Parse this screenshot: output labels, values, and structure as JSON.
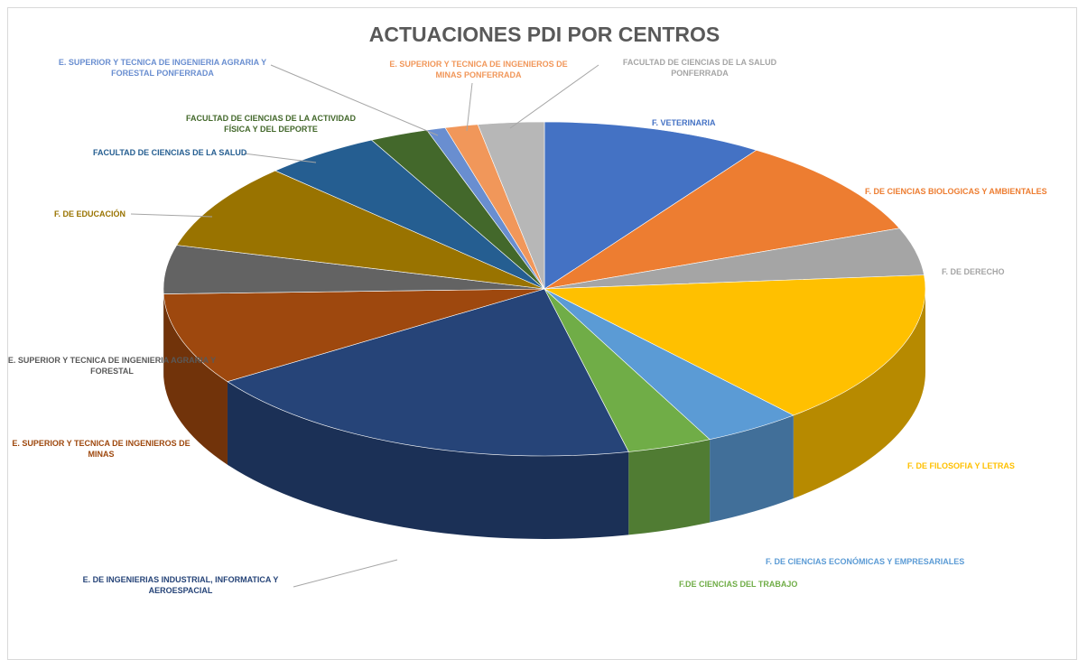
{
  "chart_data": {
    "type": "pie3d",
    "title": "ACTUACIONES PDI POR CENTROS",
    "categories": [
      "F. VETERINARIA",
      "F. DE CIENCIAS BIOLOGICAS Y AMBIENTALES",
      "F. DE DERECHO",
      "F. DE FILOSOFIA Y LETRAS",
      "F. DE CIENCIAS ECONÓMICAS Y EMPRESARIALES",
      "F.DE CIENCIAS DEL TRABAJO",
      "E. DE INGENIERIAS INDUSTRIAL, INFORMATICA Y AEROESPACIAL",
      "E. SUPERIOR Y TECNICA DE INGENIEROS DE MINAS",
      "E. SUPERIOR Y TECNICA DE INGENIERIA AGRARIA Y FORESTAL",
      "F. DE EDUCACIÓN",
      "FACULTAD DE CIENCIAS DE LA SALUD",
      "FACULTAD DE CIENCIAS DE LA ACTIVIDAD FÍSICA Y DEL DEPORTE",
      "E. SUPERIOR Y TECNICA DE INGENIERIA AGRARIA Y FORESTAL PONFERRADA",
      "E. SUPERIOR Y TECNICA DE INGENIEROS DE MINAS PONFERRADA",
      "FACULTAD DE CIENCIAS DE LA SALUD PONFERRADA"
    ],
    "values": [
      9.4,
      9.7,
      4.6,
      15,
      4.2,
      3.6,
      19.2,
      8.9,
      4.7,
      8.3,
      5,
      2.5,
      0.8,
      1.4,
      2.8
    ],
    "colors": [
      "#4472C4",
      "#ED7D31",
      "#A5A5A5",
      "#FFC000",
      "#5B9BD5",
      "#70AD47",
      "#264478",
      "#9E480E",
      "#636363",
      "#997300",
      "#255E91",
      "#43682B",
      "#698ED0",
      "#F1975A",
      "#B7B7B7"
    ]
  }
}
